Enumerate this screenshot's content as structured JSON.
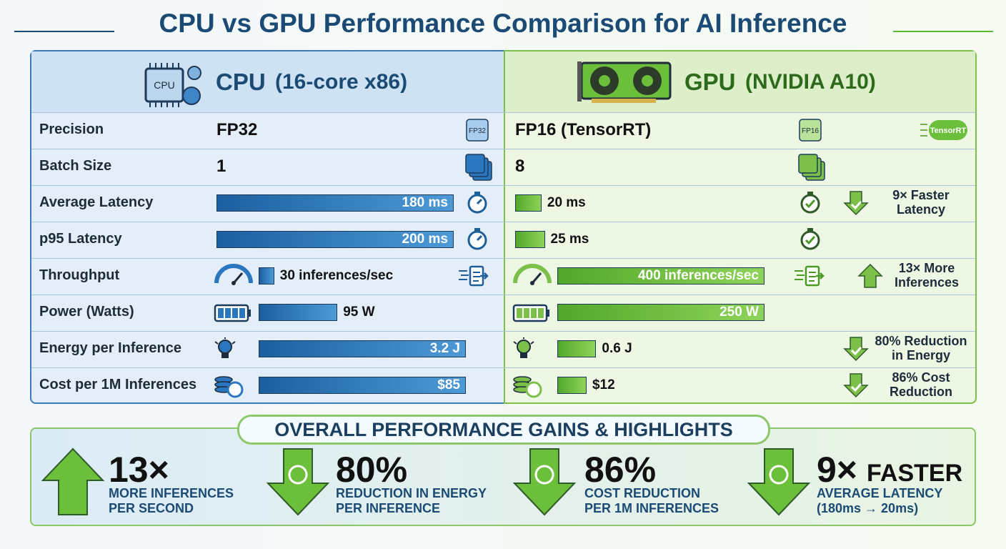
{
  "title": "CPU vs GPU Performance Comparison for AI Inference",
  "cpu": {
    "name": "CPU",
    "detail": "(16-core x86)",
    "chip_label": "CPU"
  },
  "gpu": {
    "name": "GPU",
    "detail": "(NVIDIA A10)"
  },
  "rows": [
    {
      "label": "Precision",
      "cpu": {
        "text": "FP32",
        "badge": "FP32"
      },
      "gpu": {
        "text": "FP16 (TensorRT)",
        "badge": "FP16"
      },
      "tag": "TensorRT"
    },
    {
      "label": "Batch Size",
      "cpu": {
        "value": 1
      },
      "gpu": {
        "value": 8
      }
    },
    {
      "label": "Average Latency",
      "cpu": {
        "value": 180,
        "value_label": "180 ms"
      },
      "gpu": {
        "value": 20,
        "value_label": "20 ms"
      },
      "note": [
        "9× Faster",
        "Latency"
      ]
    },
    {
      "label": "p95 Latency",
      "cpu": {
        "value": 200,
        "value_label": "200 ms"
      },
      "gpu": {
        "value": 25,
        "value_label": "25 ms"
      }
    },
    {
      "label": "Throughput",
      "cpu": {
        "value": 30,
        "value_label": "30 inferences/sec"
      },
      "gpu": {
        "value": 400,
        "value_label": "400 inferences/sec"
      },
      "note": [
        "13× More",
        "Inferences"
      ]
    },
    {
      "label": "Power (Watts)",
      "cpu": {
        "value": 95,
        "value_label": "95 W"
      },
      "gpu": {
        "value": 250,
        "value_label": "250 W"
      }
    },
    {
      "label": "Energy per Inference",
      "cpu": {
        "value": 3.2,
        "value_label": "3.2 J"
      },
      "gpu": {
        "value": 0.6,
        "value_label": "0.6 J"
      },
      "note": [
        "80% Reduction",
        "in Energy"
      ]
    },
    {
      "label": "Cost per 1M Inferences",
      "cpu": {
        "value": 85,
        "value_label": "$85"
      },
      "gpu": {
        "value": 12,
        "value_label": "$12"
      },
      "note": [
        "86% Cost",
        "Reduction"
      ]
    }
  ],
  "highlights": {
    "title": "OVERALL PERFORMANCE GAINS & HIGHLIGHTS",
    "items": [
      {
        "big": "13×",
        "text": [
          "MORE INFERENCES",
          "PER SECOND"
        ]
      },
      {
        "big": "80%",
        "text": [
          "REDUCTION IN ENERGY",
          "PER INFERENCE"
        ]
      },
      {
        "big": "86%",
        "text": [
          "COST REDUCTION",
          "PER 1M INFERENCES"
        ]
      },
      {
        "big": "9×",
        "suffix": "FASTER",
        "text": [
          "AVERAGE LATENCY",
          "(180ms → 20ms)"
        ]
      }
    ]
  }
}
